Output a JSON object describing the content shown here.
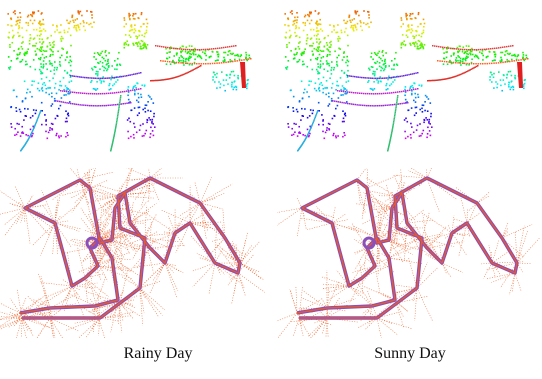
{
  "captions": {
    "left": "Rainy Day",
    "right": "Sunny Day"
  },
  "colors": {
    "trajectory": "#8a4fb8",
    "rays": "#f05a1e",
    "background": "#ffffff"
  }
}
